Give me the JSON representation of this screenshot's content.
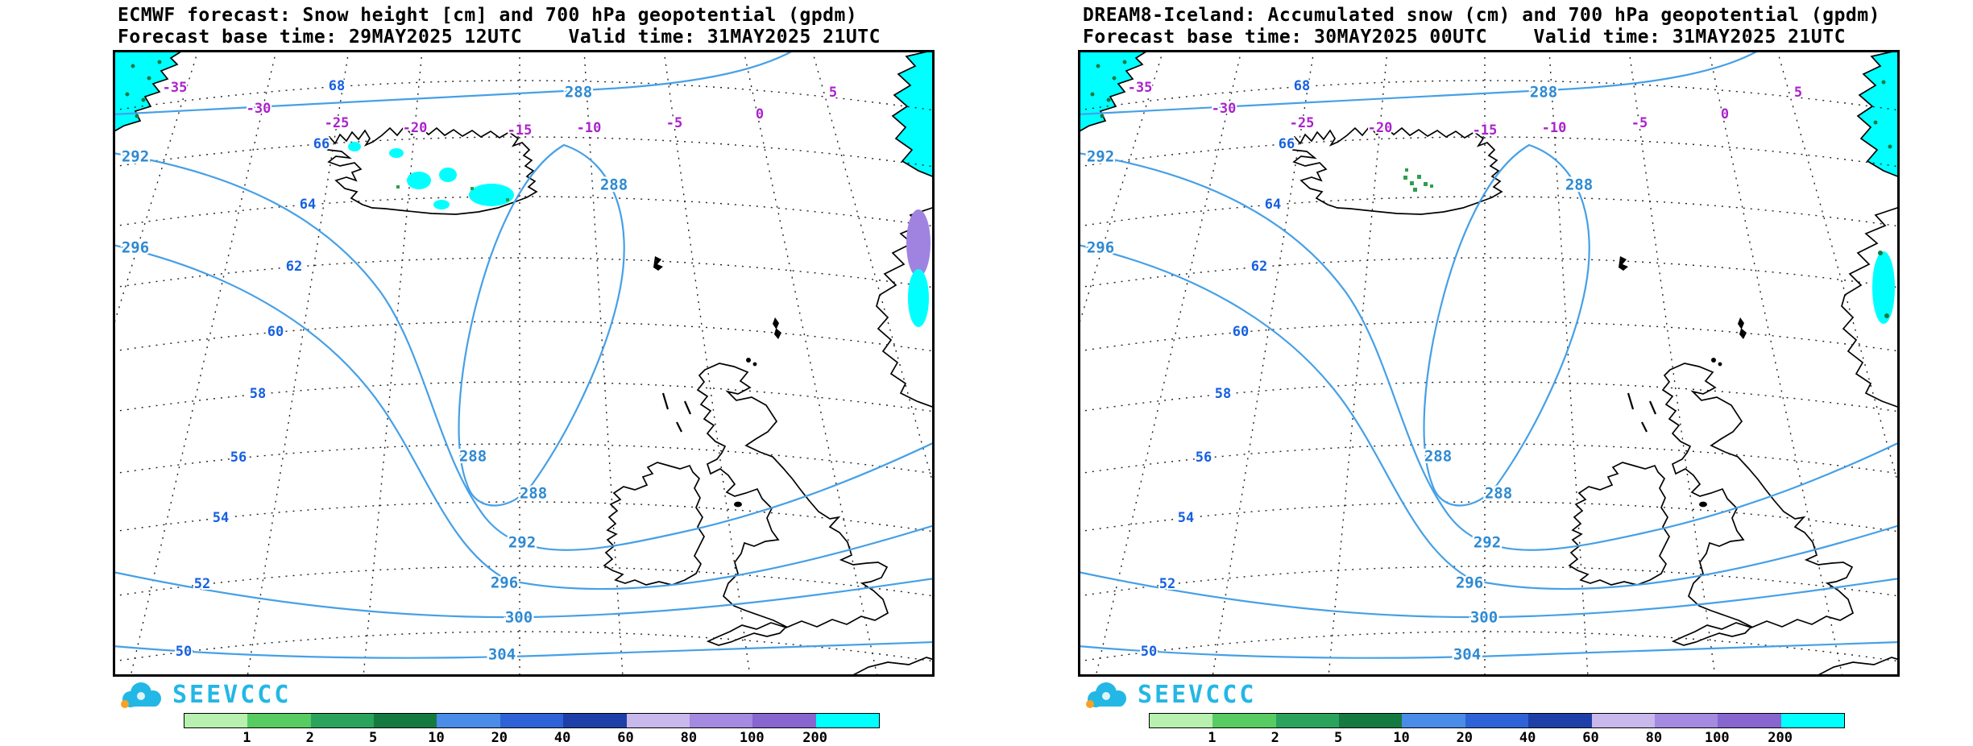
{
  "panels": [
    {
      "title": "ECMWF forecast: Snow height [cm] and 700 hPa geopotential (gpdm)",
      "subtitle": "Forecast base time: 29MAY2025 12UTC    Valid time: 31MAY2025 21UTC"
    },
    {
      "title": "DREAM8-Iceland: Accumulated snow (cm) and 700 hPa geopotential (gpdm)",
      "subtitle": "Forecast base time: 30MAY2025 00UTC    Valid time: 31MAY2025 21UTC"
    }
  ],
  "map": {
    "lat_labels": [
      "68",
      "66",
      "64",
      "62",
      "60",
      "58",
      "56",
      "54",
      "52",
      "50"
    ],
    "lon_labels": [
      "-35",
      "-30",
      "-25",
      "-20",
      "-15",
      "-10",
      "-5",
      "0",
      "5"
    ],
    "contour_levels": {
      "l288": "288",
      "l292": "292",
      "l296": "296",
      "l300": "300",
      "l304": "304"
    }
  },
  "legend": {
    "values": [
      "1",
      "2",
      "5",
      "10",
      "20",
      "40",
      "60",
      "80",
      "100",
      "200"
    ],
    "colors": [
      "#b8f0b0",
      "#57cc62",
      "#2aa35c",
      "#157a40",
      "#4b8ce8",
      "#2f62d6",
      "#1e3fa8",
      "#c9b8ec",
      "#a48ae0",
      "#8766cf",
      "#00ffff"
    ]
  },
  "logo": {
    "text": "SEEVCCC"
  },
  "colors": {
    "contour": "#46a0e6",
    "contour_label": "#2e8ad2",
    "lat": "#1560e0",
    "lon": "#aa22cc",
    "snow": "#00ffff",
    "snow_purple": "#a083e0",
    "snow_green": "#2f9e4f",
    "speckle": "#157a40",
    "logo": "#23b7e5"
  }
}
